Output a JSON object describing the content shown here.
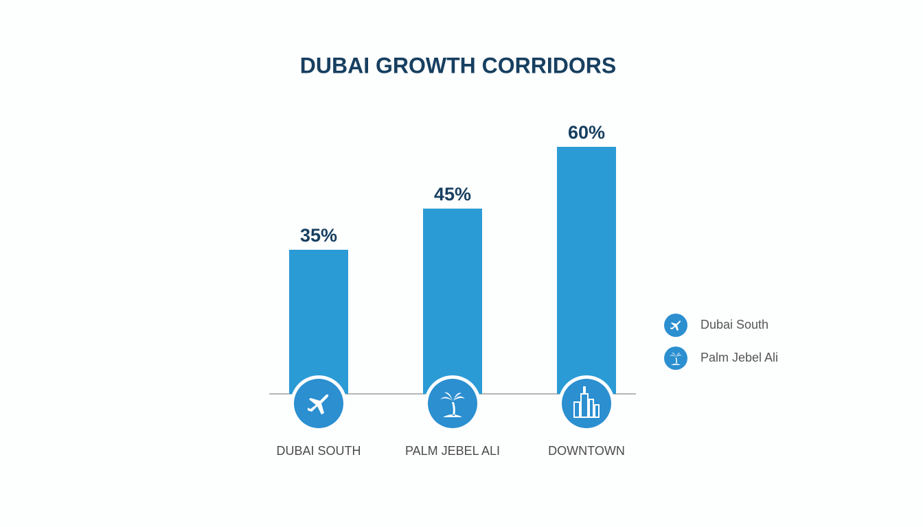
{
  "chart_data": {
    "type": "bar",
    "title": "DUBAI GROWTH CORRIDORS",
    "categories": [
      "DUBAI SOUTH",
      "PALM JEBEL ALI",
      "DOWNTOWN"
    ],
    "values": [
      35,
      45,
      60
    ],
    "value_labels": [
      "35%",
      "45%",
      "60%"
    ],
    "color": "#2b9bd6",
    "legend": [
      "Dubai South",
      "Palm Jebel Ali"
    ]
  }
}
